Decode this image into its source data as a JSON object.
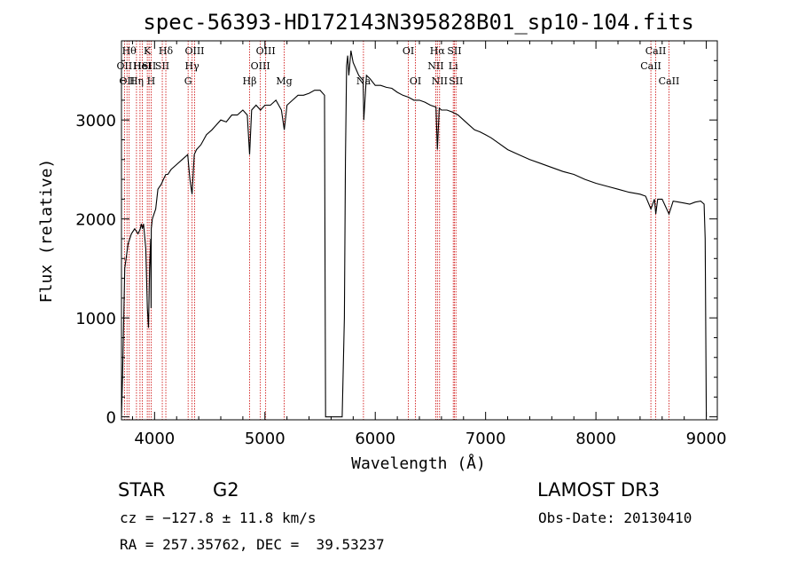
{
  "chart_data": {
    "type": "line",
    "title": "spec-56393-HD172143N395828B01_sp10-104.fits",
    "xlabel": "Wavelength (Å)",
    "ylabel": "Flux (relative)",
    "xlim": [
      3700,
      9100
    ],
    "ylim": [
      -30,
      3800
    ],
    "xticks": [
      4000,
      5000,
      6000,
      7000,
      8000,
      9000
    ],
    "yticks": [
      0,
      1000,
      2000,
      3000
    ],
    "line_color": "#000000",
    "marker_color": "#cc0000",
    "series": [
      {
        "name": "spectrum",
        "x": [
          3700,
          3710,
          3730,
          3760,
          3790,
          3820,
          3850,
          3870,
          3880,
          3890,
          3900,
          3920,
          3935,
          3945,
          3955,
          3965,
          3968,
          3970,
          3980,
          3995,
          4010,
          4030,
          4060,
          4080,
          4102,
          4120,
          4150,
          4200,
          4250,
          4300,
          4320,
          4340,
          4360,
          4380,
          4420,
          4470,
          4520,
          4560,
          4600,
          4650,
          4700,
          4750,
          4800,
          4840,
          4861,
          4880,
          4920,
          4960,
          5000,
          5050,
          5100,
          5150,
          5175,
          5200,
          5250,
          5300,
          5350,
          5400,
          5450,
          5500,
          5540,
          5545,
          5550,
          5560,
          5600,
          5650,
          5700,
          5720,
          5730,
          5740,
          5750,
          5760,
          5780,
          5800,
          5850,
          5890,
          5896,
          5920,
          5950,
          6000,
          6050,
          6100,
          6150,
          6200,
          6250,
          6300,
          6350,
          6400,
          6450,
          6500,
          6550,
          6563,
          6580,
          6600,
          6650,
          6700,
          6750,
          6800,
          6850,
          6900,
          6950,
          7000,
          7050,
          7100,
          7200,
          7300,
          7400,
          7500,
          7600,
          7700,
          7800,
          7900,
          8000,
          8100,
          8200,
          8300,
          8400,
          8450,
          8498,
          8530,
          8542,
          8560,
          8600,
          8662,
          8700,
          8750,
          8800,
          8850,
          8900,
          8950,
          8980,
          8990,
          9000
        ],
        "values": [
          0,
          400,
          1500,
          1750,
          1850,
          1900,
          1850,
          1900,
          1950,
          1900,
          1950,
          1700,
          1100,
          900,
          1500,
          1800,
          1100,
          1900,
          2000,
          2050,
          2100,
          2300,
          2350,
          2400,
          2450,
          2450,
          2500,
          2550,
          2600,
          2650,
          2400,
          2250,
          2650,
          2700,
          2750,
          2850,
          2900,
          2950,
          3000,
          2980,
          3050,
          3050,
          3100,
          3050,
          2650,
          3100,
          3150,
          3100,
          3150,
          3150,
          3200,
          3100,
          2900,
          3150,
          3200,
          3250,
          3250,
          3270,
          3300,
          3300,
          3250,
          1500,
          0,
          0,
          0,
          0,
          0,
          1000,
          2600,
          3550,
          3650,
          3450,
          3700,
          3580,
          3450,
          3400,
          3000,
          3450,
          3420,
          3350,
          3350,
          3330,
          3320,
          3280,
          3250,
          3230,
          3200,
          3200,
          3180,
          3150,
          3130,
          2700,
          3120,
          3100,
          3100,
          3080,
          3050,
          3000,
          2950,
          2900,
          2880,
          2850,
          2820,
          2780,
          2700,
          2650,
          2600,
          2560,
          2520,
          2480,
          2450,
          2400,
          2360,
          2330,
          2300,
          2270,
          2250,
          2230,
          2100,
          2200,
          2050,
          2200,
          2200,
          2050,
          2180,
          2170,
          2160,
          2150,
          2170,
          2180,
          2150,
          1800,
          0
        ]
      }
    ],
    "line_markers": [
      {
        "x": 3727,
        "label": "OII",
        "row": 2
      },
      {
        "x": 3750,
        "label": "OII",
        "row": 3
      },
      {
        "x": 3770,
        "label": "Hθ",
        "row": 1
      },
      {
        "x": 3836,
        "label": "Hη",
        "row": 3
      },
      {
        "x": 3868,
        "label": "He",
        "row": 2
      },
      {
        "x": 3889,
        "label": "HeI",
        "row": 2
      },
      {
        "x": 3934,
        "label": "K",
        "row": 1
      },
      {
        "x": 3950,
        "label": "SII",
        "row": 2
      },
      {
        "x": 3969,
        "label": "H",
        "row": 3
      },
      {
        "x": 4070,
        "label": "SII",
        "row": 2
      },
      {
        "x": 4102,
        "label": "Hδ",
        "row": 1
      },
      {
        "x": 4304,
        "label": "G",
        "row": 3
      },
      {
        "x": 4340,
        "label": "Hγ",
        "row": 2
      },
      {
        "x": 4363,
        "label": "OIII",
        "row": 1
      },
      {
        "x": 4861,
        "label": "Hβ",
        "row": 3
      },
      {
        "x": 4959,
        "label": "OIII",
        "row": 2
      },
      {
        "x": 5007,
        "label": "OIII",
        "row": 1
      },
      {
        "x": 5175,
        "label": "Mg",
        "row": 3
      },
      {
        "x": 5893,
        "label": "Na",
        "row": 3
      },
      {
        "x": 6300,
        "label": "OI",
        "row": 1
      },
      {
        "x": 6364,
        "label": "OI",
        "row": 3
      },
      {
        "x": 6548,
        "label": "NII",
        "row": 2
      },
      {
        "x": 6563,
        "label": "Hα",
        "row": 1
      },
      {
        "x": 6583,
        "label": "NII",
        "row": 3
      },
      {
        "x": 6707,
        "label": "Li",
        "row": 2
      },
      {
        "x": 6717,
        "label": "SII",
        "row": 1
      },
      {
        "x": 6731,
        "label": "SII",
        "row": 3
      },
      {
        "x": 8498,
        "label": "CaII",
        "row": 2
      },
      {
        "x": 8542,
        "label": "CaII",
        "row": 1
      },
      {
        "x": 8662,
        "label": "CaII",
        "row": 3
      }
    ]
  },
  "info": {
    "object_class": "STAR",
    "subclass": "G2",
    "survey": "LAMOST DR3",
    "cz": "cz = −127.8 ± 11.8 km/s",
    "obs_date": "Obs-Date: 20130410",
    "coords": "RA = 257.35762, DEC =  39.53237"
  }
}
